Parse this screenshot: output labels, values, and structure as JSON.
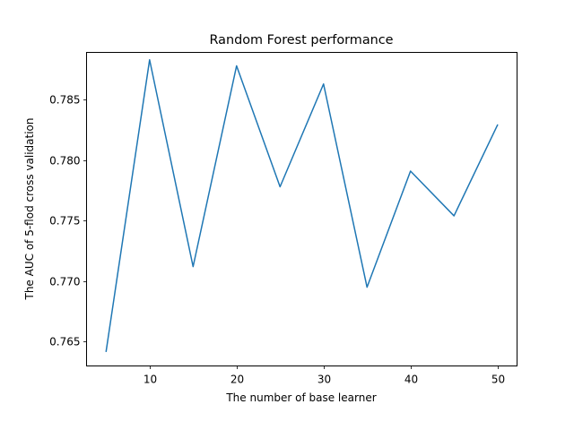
{
  "chart_data": {
    "type": "line",
    "title": "Random Forest performance",
    "xlabel": "The number of base learner",
    "ylabel": "The AUC of 5-flod cross validation",
    "x": [
      5,
      10,
      15,
      20,
      25,
      30,
      35,
      40,
      45,
      50
    ],
    "series": [
      {
        "values": [
          0.7642,
          0.7883,
          0.7712,
          0.7878,
          0.7778,
          0.7863,
          0.7695,
          0.7791,
          0.7754,
          0.7829
        ],
        "color": "#1f77b4"
      }
    ],
    "xlim": [
      2.75,
      52.25
    ],
    "ylim": [
      0.76299,
      0.78891
    ],
    "xticks": [
      10,
      20,
      30,
      40,
      50
    ],
    "xtick_labels": [
      "10",
      "20",
      "30",
      "40",
      "50"
    ],
    "yticks": [
      0.765,
      0.77,
      0.775,
      0.78,
      0.785
    ],
    "ytick_labels": [
      "0.765",
      "0.770",
      "0.775",
      "0.780",
      "0.785"
    ],
    "grid": false,
    "legend": "none"
  }
}
